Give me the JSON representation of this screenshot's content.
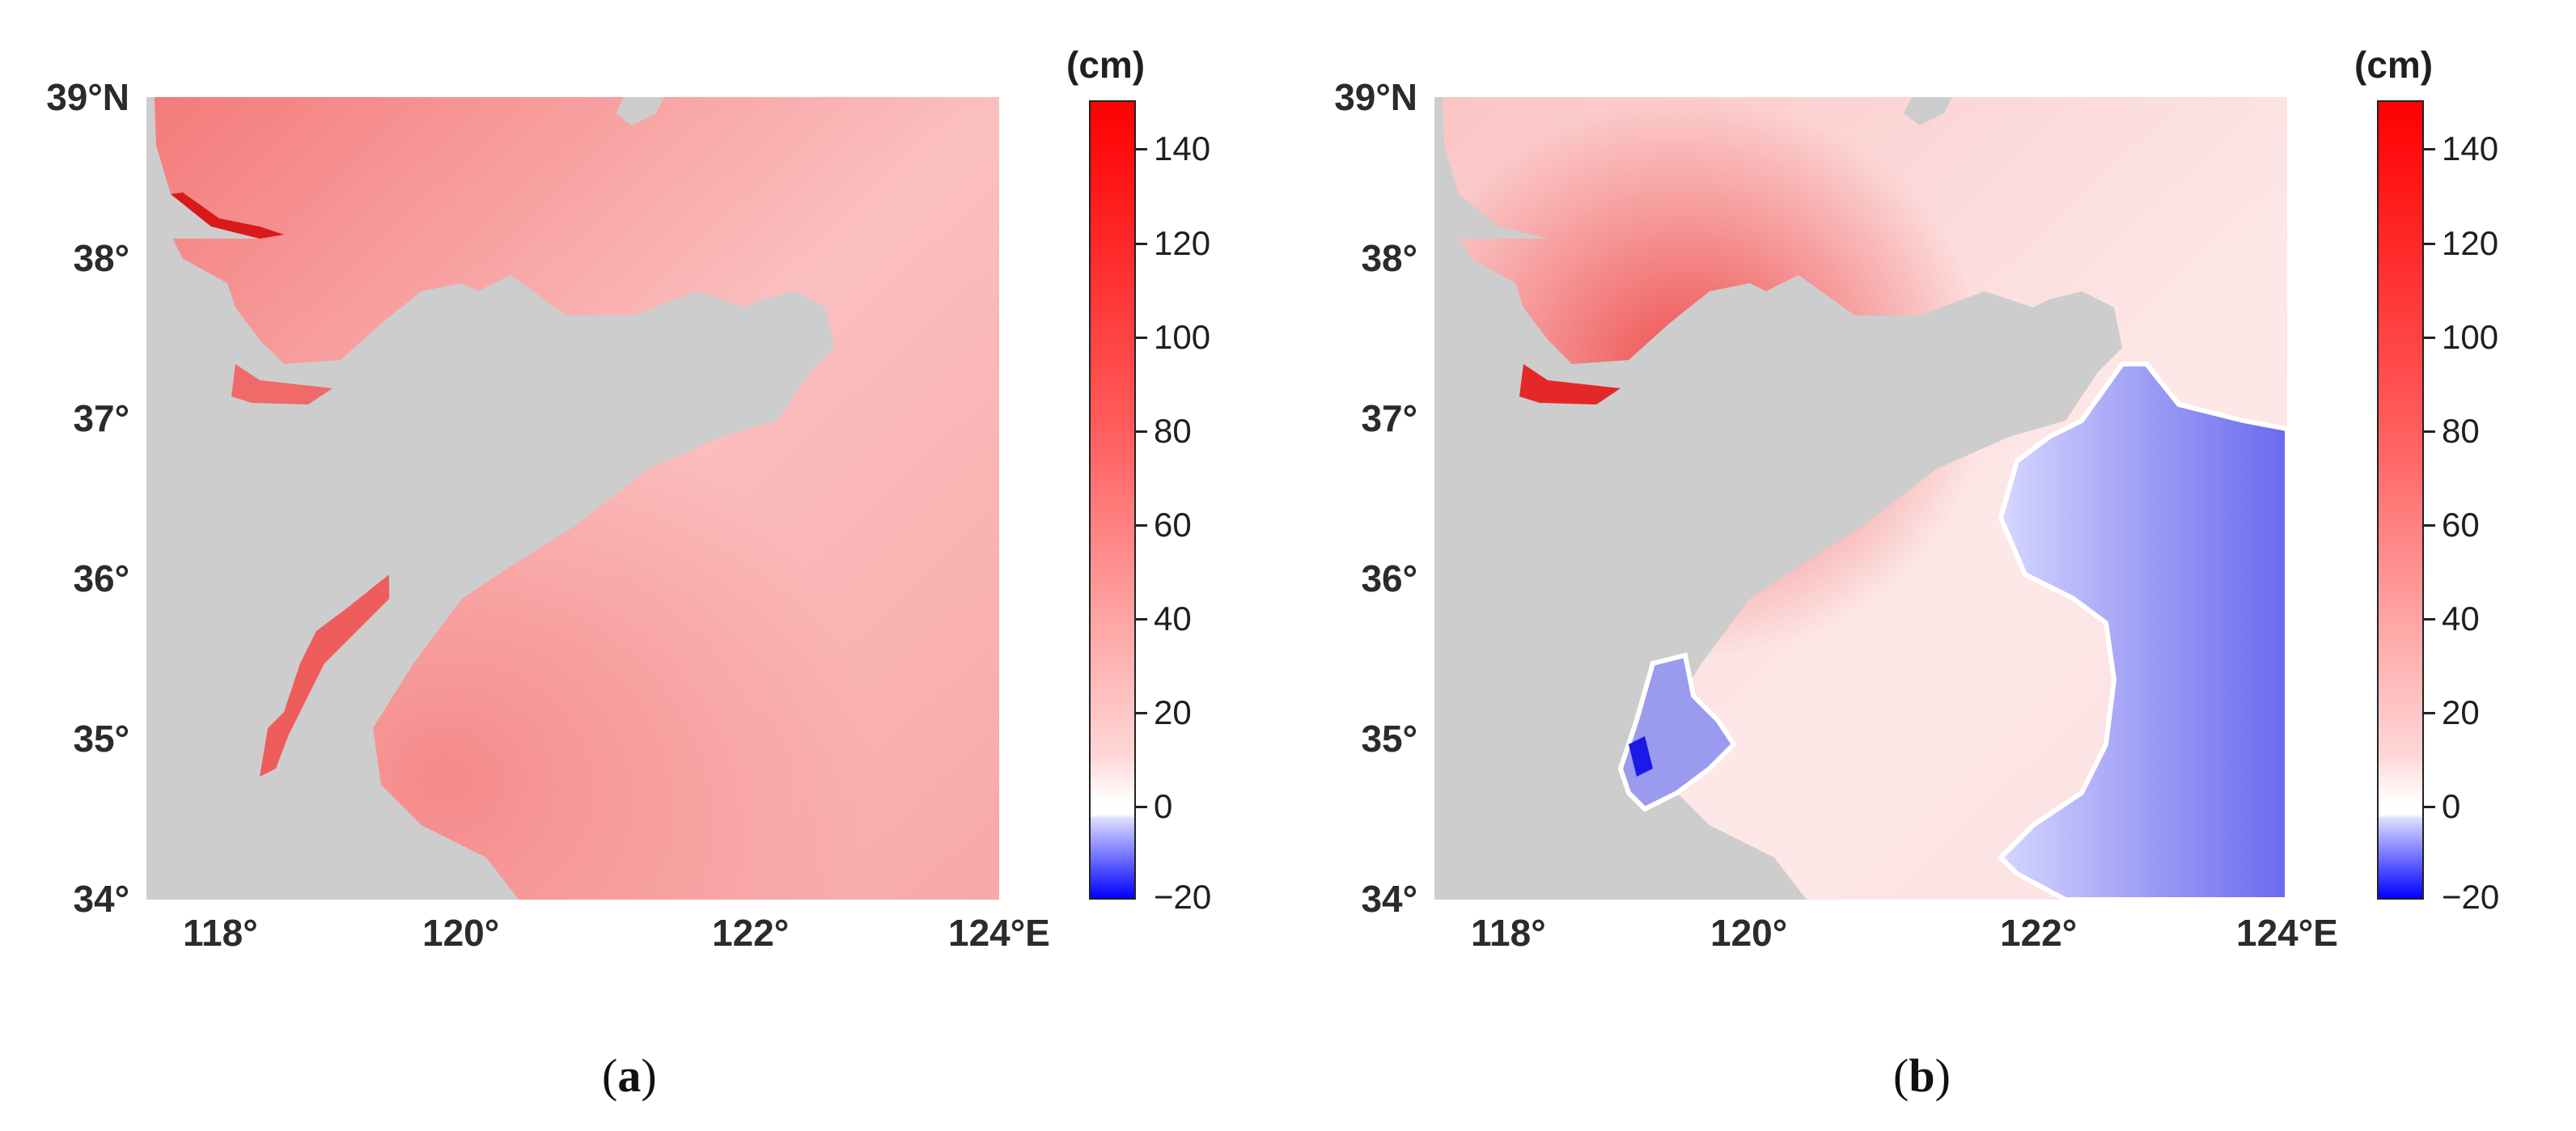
{
  "lat_labels": [
    "39°N",
    "38°",
    "37°",
    "36°",
    "35°",
    "34°"
  ],
  "lon_labels": [
    "118°",
    "120°",
    "122°",
    "124°E"
  ],
  "colorbar": {
    "unit": "(cm)",
    "ticks": [
      "140",
      "120",
      "100",
      "80",
      "60",
      "40",
      "20",
      "0",
      "−20"
    ],
    "range": [
      -20,
      150
    ]
  },
  "colors": {
    "land": "#cdcdcd",
    "max": "#ff0000",
    "zero": "#ffffff",
    "min": "#0000ff"
  },
  "panels": [
    {
      "caption": "a"
    },
    {
      "caption": "b"
    }
  ]
}
